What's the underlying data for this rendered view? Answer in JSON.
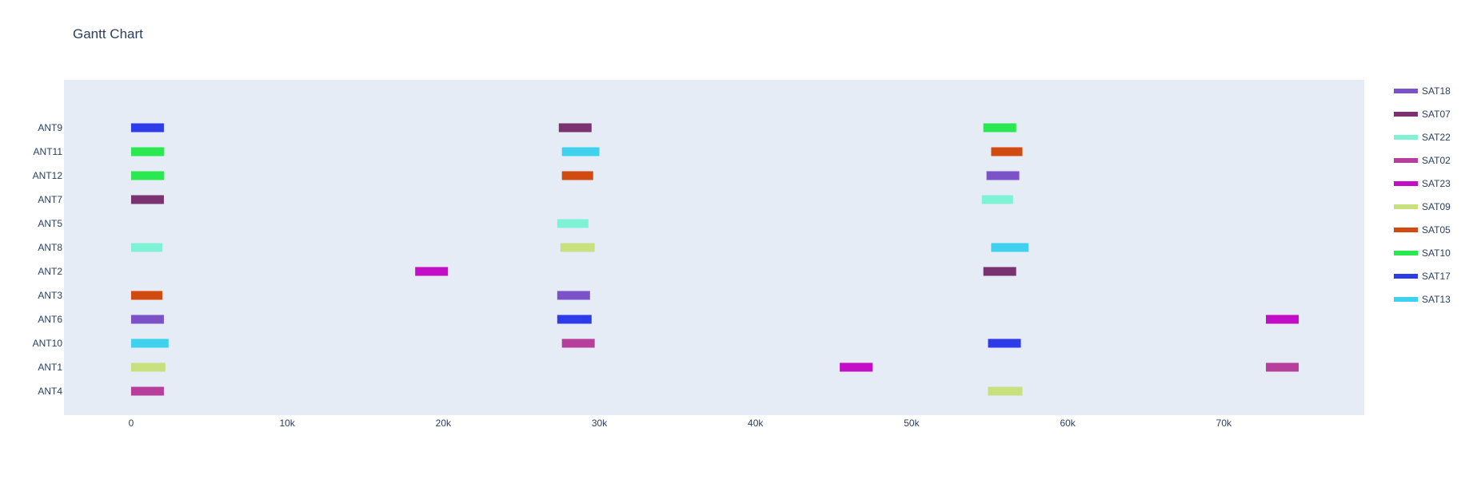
{
  "chart_data": {
    "type": "bar",
    "orientation": "horizontal",
    "title": "Gantt Chart",
    "xlabel": "",
    "ylabel": "",
    "xlim": [
      -4300,
      79000
    ],
    "x_ticks": [
      0,
      10000,
      20000,
      30000,
      40000,
      50000,
      60000,
      70000
    ],
    "x_tick_labels": [
      "0",
      "10k",
      "20k",
      "30k",
      "40k",
      "50k",
      "60k",
      "70k"
    ],
    "categories": [
      "ANT9",
      "ANT11",
      "ANT12",
      "ANT7",
      "ANT5",
      "ANT8",
      "ANT2",
      "ANT3",
      "ANT6",
      "ANT10",
      "ANT1",
      "ANT4"
    ],
    "grid": false,
    "legend_position": "right",
    "series": [
      {
        "name": "SAT18",
        "color": "#7b52c8",
        "tasks": [
          {
            "row": "ANT12",
            "start": 54800,
            "end": 56900
          },
          {
            "row": "ANT3",
            "start": 27300,
            "end": 29400
          },
          {
            "row": "ANT6",
            "start": 0,
            "end": 2100
          }
        ]
      },
      {
        "name": "SAT07",
        "color": "#7b3270",
        "tasks": [
          {
            "row": "ANT9",
            "start": 27400,
            "end": 29500
          },
          {
            "row": "ANT7",
            "start": 0,
            "end": 2100
          },
          {
            "row": "ANT2",
            "start": 54600,
            "end": 56700
          }
        ]
      },
      {
        "name": "SAT22",
        "color": "#7ff2d6",
        "tasks": [
          {
            "row": "ANT7",
            "start": 54500,
            "end": 56500
          },
          {
            "row": "ANT5",
            "start": 27300,
            "end": 29300
          },
          {
            "row": "ANT8",
            "start": 0,
            "end": 2000
          }
        ]
      },
      {
        "name": "SAT02",
        "color": "#b83e9b",
        "tasks": [
          {
            "row": "ANT10",
            "start": 27600,
            "end": 29700
          },
          {
            "row": "ANT1",
            "start": 72700,
            "end": 74800
          },
          {
            "row": "ANT4",
            "start": 0,
            "end": 2100
          }
        ]
      },
      {
        "name": "SAT23",
        "color": "#c40dc7",
        "tasks": [
          {
            "row": "ANT2",
            "start": 18200,
            "end": 20300
          },
          {
            "row": "ANT6",
            "start": 72700,
            "end": 74800
          },
          {
            "row": "ANT1",
            "start": 45400,
            "end": 47500
          }
        ]
      },
      {
        "name": "SAT09",
        "color": "#c9e07e",
        "tasks": [
          {
            "row": "ANT8",
            "start": 27500,
            "end": 29700
          },
          {
            "row": "ANT1",
            "start": 0,
            "end": 2200
          },
          {
            "row": "ANT4",
            "start": 54900,
            "end": 57100
          }
        ]
      },
      {
        "name": "SAT05",
        "color": "#d14b10",
        "tasks": [
          {
            "row": "ANT11",
            "start": 55100,
            "end": 57100
          },
          {
            "row": "ANT12",
            "start": 27600,
            "end": 29600
          },
          {
            "row": "ANT3",
            "start": 0,
            "end": 2000
          }
        ]
      },
      {
        "name": "SAT10",
        "color": "#2ae84f",
        "tasks": [
          {
            "row": "ANT9",
            "start": 54600,
            "end": 56700
          },
          {
            "row": "ANT11",
            "start": 0,
            "end": 2100
          },
          {
            "row": "ANT12",
            "start": 0,
            "end": 2100
          }
        ]
      },
      {
        "name": "SAT17",
        "color": "#2e3be8",
        "tasks": [
          {
            "row": "ANT9",
            "start": 0,
            "end": 2100
          },
          {
            "row": "ANT6",
            "start": 27300,
            "end": 29500
          },
          {
            "row": "ANT10",
            "start": 54900,
            "end": 57000
          }
        ]
      },
      {
        "name": "SAT13",
        "color": "#3fd2ef",
        "tasks": [
          {
            "row": "ANT11",
            "start": 27600,
            "end": 30000
          },
          {
            "row": "ANT8",
            "start": 55100,
            "end": 57500
          },
          {
            "row": "ANT10",
            "start": 0,
            "end": 2400
          }
        ]
      }
    ]
  }
}
